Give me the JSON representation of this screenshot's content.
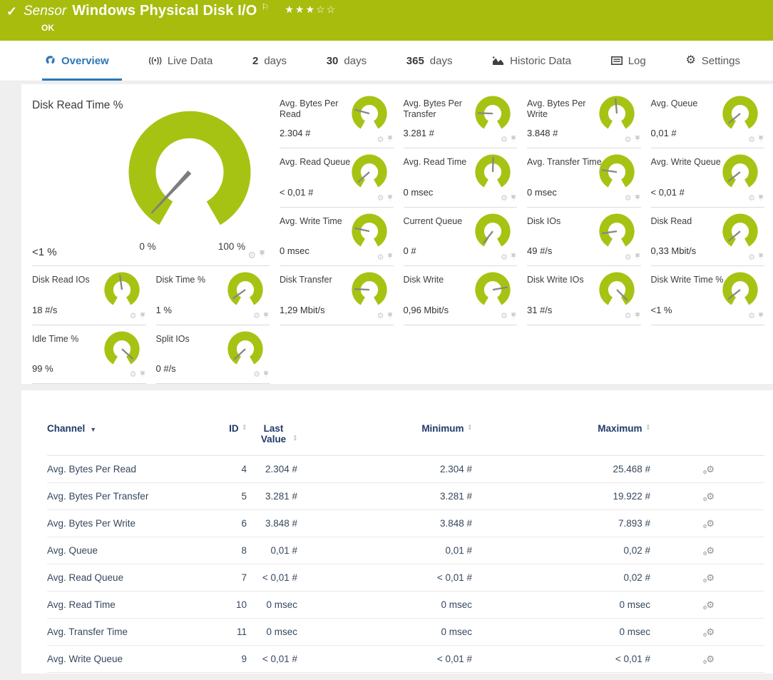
{
  "colors": {
    "brand_green": "#a8bc0e",
    "gauge_green": "#a6c313",
    "active_tab_blue": "#2e77b5",
    "table_header_blue": "#213a68",
    "needle_gray": "#878787"
  },
  "icons": {
    "check": "✓",
    "flag": "⚐",
    "star_filled": "★",
    "star_empty": "☆",
    "gear": "⚙",
    "sort_asc": "▲",
    "sort_desc": "▼",
    "caret_down": "▼",
    "broadcast": "((•))"
  },
  "header": {
    "kind": "Sensor",
    "title": "Windows Physical Disk I/O",
    "status": "OK",
    "stars": {
      "filled": 3,
      "total": 5
    }
  },
  "tabs": [
    {
      "id": "overview",
      "label": "Overview",
      "icon": "gauge-icon",
      "active": true
    },
    {
      "id": "live-data",
      "label": "Live Data",
      "icon": "broadcast-icon"
    },
    {
      "id": "2-days",
      "strong": "2",
      "label": "days"
    },
    {
      "id": "30-days",
      "strong": "30",
      "label": "days"
    },
    {
      "id": "365-days",
      "strong": "365",
      "label": "days"
    },
    {
      "id": "historic-data",
      "label": "Historic Data",
      "icon": "area-chart-icon"
    },
    {
      "id": "log",
      "label": "Log",
      "icon": "log-icon"
    },
    {
      "id": "settings",
      "label": "Settings",
      "icon": "gear-icon"
    }
  ],
  "main_gauge": {
    "title": "Disk Read Time %",
    "value": "<1 %",
    "min_label": "0 %",
    "max_label": "100 %",
    "needle_deg": 133
  },
  "gauges": [
    {
      "title": "Avg. Bytes Per Read",
      "value": "2.304 #",
      "needle_deg": 195
    },
    {
      "title": "Avg. Bytes Per Transfer",
      "value": "3.281 #",
      "needle_deg": 182
    },
    {
      "title": "Avg. Bytes Per Write",
      "value": "3.848 #",
      "needle_deg": 265
    },
    {
      "title": "Avg. Queue",
      "value": "0,01 #",
      "needle_deg": 140
    },
    {
      "title": "Avg. Read Queue",
      "value": "< 0,01 #",
      "needle_deg": 138
    },
    {
      "title": "Avg. Read Time",
      "value": "0 msec",
      "needle_deg": 272
    },
    {
      "title": "Avg. Transfer Time",
      "value": "0 msec",
      "needle_deg": 188
    },
    {
      "title": "Avg. Write Queue",
      "value": "< 0,01 #",
      "needle_deg": 142
    },
    {
      "title": "Avg. Write Time",
      "value": "0 msec",
      "needle_deg": 192
    },
    {
      "title": "Current Queue",
      "value": "0 #",
      "needle_deg": 128
    },
    {
      "title": "Disk IOs",
      "value": "49 #/s",
      "needle_deg": 172
    },
    {
      "title": "Disk Read",
      "value": "0,33 Mbit/s",
      "needle_deg": 140
    },
    {
      "title": "Disk Read IOs",
      "value": "18 #/s",
      "needle_deg": 262
    },
    {
      "title": "Disk Time %",
      "value": "1 %",
      "needle_deg": 145
    },
    {
      "title": "Disk Transfer",
      "value": "1,29 Mbit/s",
      "needle_deg": 183
    },
    {
      "title": "Disk Write",
      "value": "0,96 Mbit/s",
      "needle_deg": 350
    },
    {
      "title": "Disk Write IOs",
      "value": "31 #/s",
      "needle_deg": 45
    },
    {
      "title": "Disk Write Time %",
      "value": "<1 %",
      "needle_deg": 142
    },
    {
      "title": "Idle Time %",
      "value": "99 %",
      "needle_deg": 42
    },
    {
      "title": "Split IOs",
      "value": "0 #/s",
      "needle_deg": 137
    }
  ],
  "table": {
    "columns": [
      "Channel",
      "ID",
      "Last Value",
      "Minimum",
      "Maximum"
    ],
    "rows": [
      {
        "channel": "Avg. Bytes Per Read",
        "id": "4",
        "last": "2.304 #",
        "min": "2.304 #",
        "max": "25.468 #"
      },
      {
        "channel": "Avg. Bytes Per Transfer",
        "id": "5",
        "last": "3.281 #",
        "min": "3.281 #",
        "max": "19.922 #"
      },
      {
        "channel": "Avg. Bytes Per Write",
        "id": "6",
        "last": "3.848 #",
        "min": "3.848 #",
        "max": "7.893 #"
      },
      {
        "channel": "Avg. Queue",
        "id": "8",
        "last": "0,01 #",
        "min": "0,01 #",
        "max": "0,02 #"
      },
      {
        "channel": "Avg. Read Queue",
        "id": "7",
        "last": "< 0,01 #",
        "min": "< 0,01 #",
        "max": "0,02 #"
      },
      {
        "channel": "Avg. Read Time",
        "id": "10",
        "last": "0 msec",
        "min": "0 msec",
        "max": "0 msec"
      },
      {
        "channel": "Avg. Transfer Time",
        "id": "11",
        "last": "0 msec",
        "min": "0 msec",
        "max": "0 msec"
      },
      {
        "channel": "Avg. Write Queue",
        "id": "9",
        "last": "< 0,01 #",
        "min": "< 0,01 #",
        "max": "< 0,01 #"
      }
    ]
  }
}
